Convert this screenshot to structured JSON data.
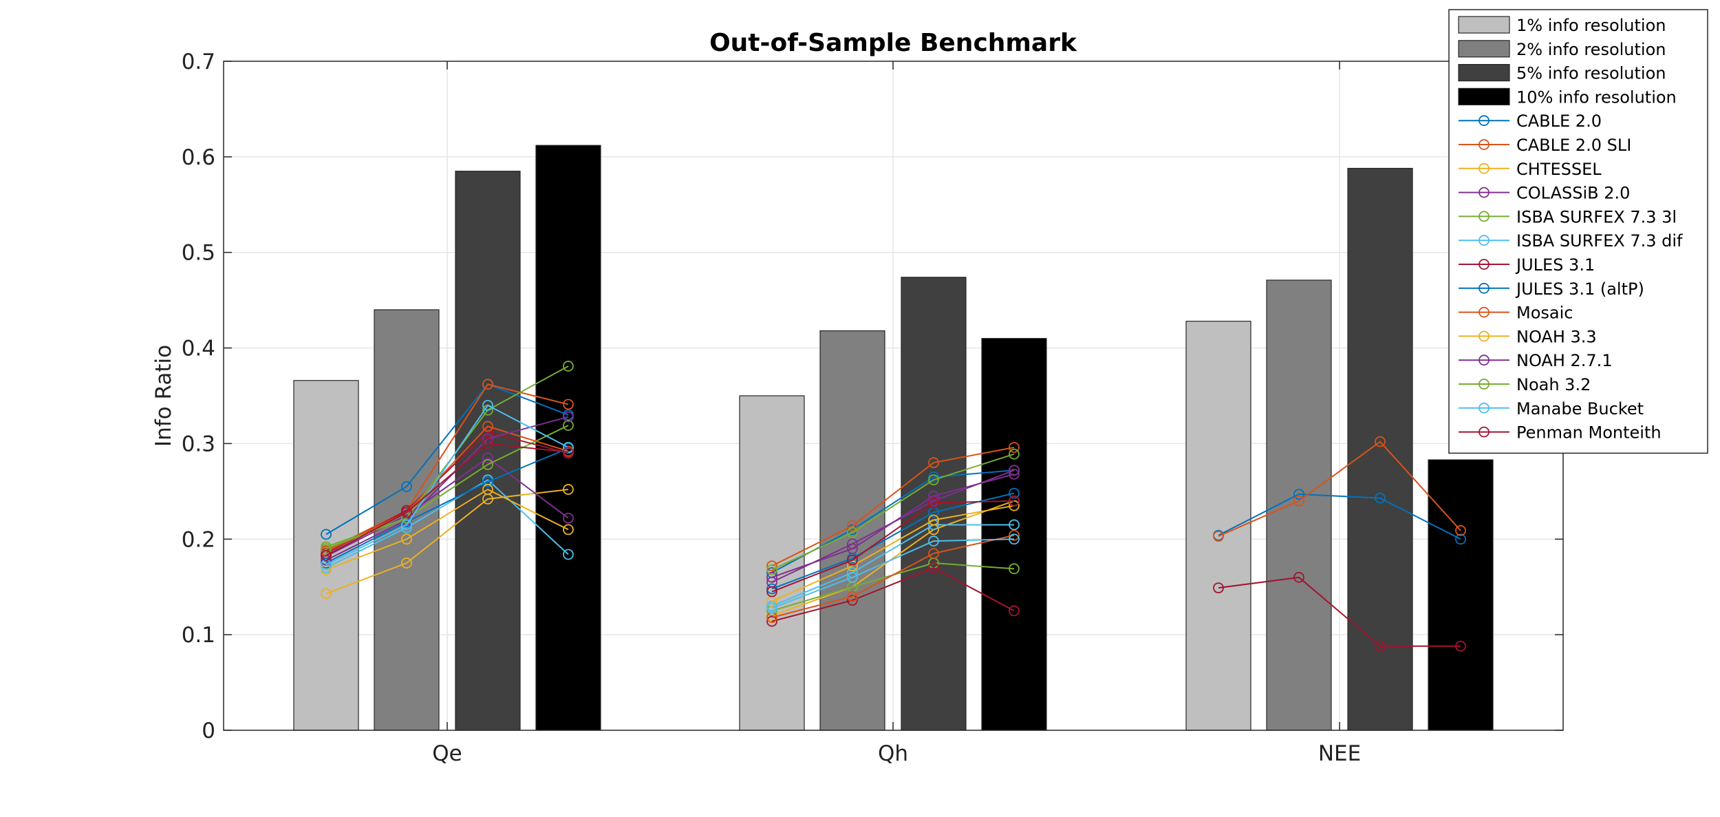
{
  "chart_data": {
    "type": "bar",
    "title": "Out-of-Sample Benchmark",
    "xlabel": "",
    "ylabel": "Info Ratio",
    "ylim": [
      0,
      0.7
    ],
    "yticks": [
      "0",
      "0.1",
      "0.2",
      "0.3",
      "0.4",
      "0.5",
      "0.6",
      "0.7"
    ],
    "categories": [
      "Qe",
      "Qh",
      "NEE"
    ],
    "grid": true,
    "legend_position": "top-right",
    "bar_series": [
      {
        "name": "1% info resolution",
        "color": "#bfbfbf",
        "values": [
          0.366,
          0.35,
          0.428
        ]
      },
      {
        "name": "2% info resolution",
        "color": "#808080",
        "values": [
          0.44,
          0.418,
          0.471
        ]
      },
      {
        "name": "5% info resolution",
        "color": "#404040",
        "values": [
          0.585,
          0.474,
          0.588
        ]
      },
      {
        "name": "10% info resolution",
        "color": "#000000",
        "values": [
          0.612,
          0.41,
          0.283
        ]
      }
    ],
    "line_series": [
      {
        "name": "CABLE 2.0",
        "color": "#0072bd",
        "values": [
          [
            0.205,
            0.255,
            0.362,
            0.33
          ],
          [
            0.165,
            0.21,
            0.265,
            0.272
          ],
          [
            0.204,
            0.247,
            0.243,
            0.2
          ]
        ]
      },
      {
        "name": "CABLE 2.0 SLI",
        "color": "#d95319",
        "values": [
          [
            0.188,
            0.23,
            0.362,
            0.341
          ],
          [
            0.172,
            0.214,
            0.28,
            0.296
          ],
          [
            0.203,
            0.24,
            0.302,
            0.209
          ]
        ]
      },
      {
        "name": "CHTESSEL",
        "color": "#edb120",
        "values": [
          [
            0.143,
            0.175,
            0.242,
            0.252
          ],
          [
            0.12,
            0.15,
            0.21,
            0.24
          ]
        ]
      },
      {
        "name": "COLASSiB 2.0",
        "color": "#7e2f8e",
        "values": [
          [
            0.182,
            0.225,
            0.285,
            0.222
          ],
          [
            0.16,
            0.19,
            0.245,
            0.268
          ]
        ]
      },
      {
        "name": "ISBA SURFEX 7.3 3l",
        "color": "#77ac30",
        "values": [
          [
            0.192,
            0.222,
            0.278,
            0.319
          ],
          [
            0.125,
            0.15,
            0.175,
            0.169
          ]
        ]
      },
      {
        "name": "ISBA SURFEX 7.3 dif",
        "color": "#4dbeee",
        "values": [
          [
            0.17,
            0.212,
            0.262,
            0.184
          ],
          [
            0.13,
            0.165,
            0.215,
            0.215
          ]
        ]
      },
      {
        "name": "JULES 3.1",
        "color": "#a2142f",
        "values": [
          [
            0.185,
            0.23,
            0.312,
            0.29
          ],
          [
            0.114,
            0.136,
            0.17,
            0.125
          ],
          [
            0.149,
            0.16,
            0.088,
            0.088
          ]
        ]
      },
      {
        "name": "JULES 3.1 (altP)",
        "color": "#0072bd",
        "values": [
          [
            0.175,
            0.218,
            0.26,
            0.295
          ],
          [
            0.148,
            0.18,
            0.228,
            0.248
          ]
        ]
      },
      {
        "name": "Mosaic",
        "color": "#d95319",
        "values": [
          [
            0.187,
            0.228,
            0.318,
            0.292
          ],
          [
            0.118,
            0.14,
            0.185,
            0.204
          ]
        ]
      },
      {
        "name": "NOAH 3.3",
        "color": "#edb120",
        "values": [
          [
            0.168,
            0.2,
            0.252,
            0.21
          ],
          [
            0.135,
            0.172,
            0.22,
            0.235
          ]
        ]
      },
      {
        "name": "NOAH 2.7.1",
        "color": "#7e2f8e",
        "values": [
          [
            0.178,
            0.22,
            0.305,
            0.328
          ],
          [
            0.155,
            0.195,
            0.24,
            0.272
          ]
        ]
      },
      {
        "name": "Noah 3.2",
        "color": "#77ac30",
        "values": [
          [
            0.19,
            0.222,
            0.335,
            0.381
          ],
          [
            0.168,
            0.207,
            0.262,
            0.289
          ]
        ]
      },
      {
        "name": "Manabe Bucket",
        "color": "#4dbeee",
        "values": [
          [
            0.173,
            0.215,
            0.34,
            0.296
          ],
          [
            0.128,
            0.16,
            0.198,
            0.2
          ]
        ]
      },
      {
        "name": "Penman Monteith",
        "color": "#a2142f",
        "values": [
          [
            0.183,
            0.228,
            0.3,
            0.291
          ],
          [
            0.145,
            0.178,
            0.238,
            0.24
          ]
        ]
      }
    ]
  }
}
